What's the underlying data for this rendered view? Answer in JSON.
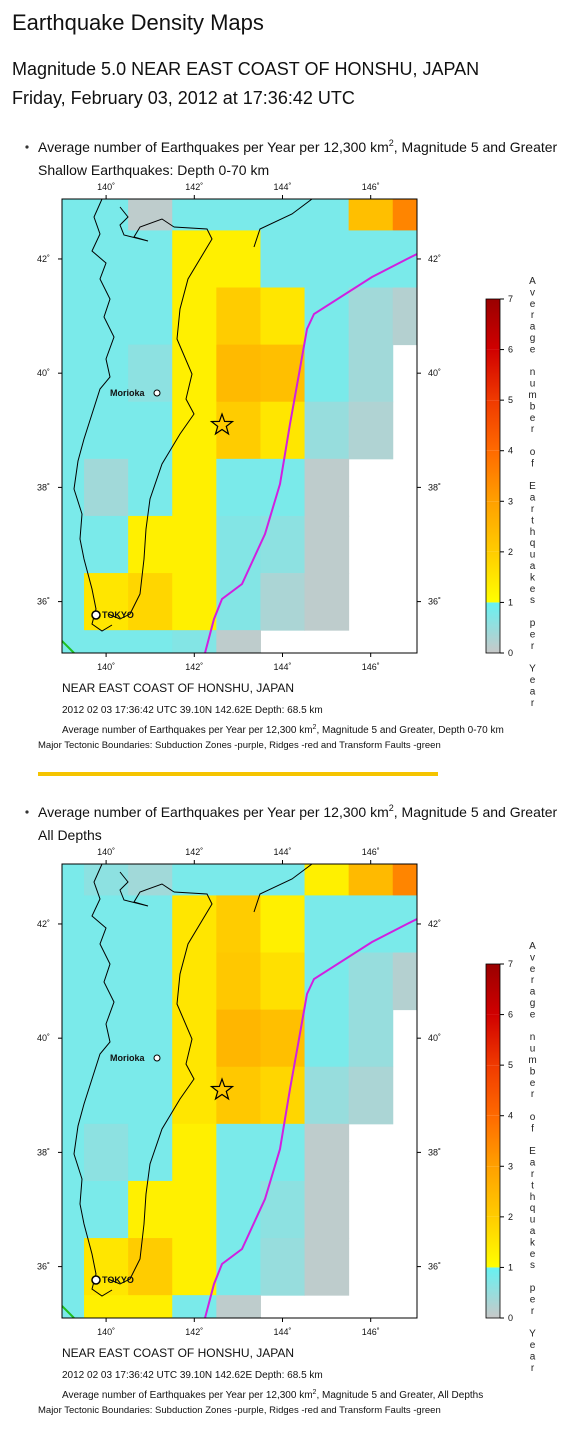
{
  "page": {
    "title": "Earthquake Density Maps",
    "subtitle": "Magnitude 5.0 NEAR EAST COAST OF HONSHU, JAPAN",
    "date": "Friday, February 03, 2012 at 17:36:42 UTC"
  },
  "chart_data": [
    {
      "type": "heatmap",
      "note_prefix": "Average number of Earthquakes per Year per 12,300 km",
      "note_sup": "2",
      "note_suffix": ", Magnitude 5 and Greater",
      "subtitle": "Shallow Earthquakes: Depth 0-70 km",
      "x": [
        139,
        140,
        141,
        142,
        143,
        144,
        145,
        146,
        147
      ],
      "y": [
        43,
        42,
        41,
        40,
        39,
        38,
        37,
        36,
        35
      ],
      "values": [
        [
          0.8,
          0.8,
          0.1,
          0.8,
          0.8,
          0.8,
          0.8,
          2.3,
          3.5
        ],
        [
          0.8,
          0.8,
          0.8,
          1.3,
          1.3,
          0.8,
          0.8,
          0.8,
          0.8
        ],
        [
          0.8,
          0.8,
          0.8,
          1.3,
          2.0,
          1.5,
          0.8,
          0.4,
          0.2
        ],
        [
          0.8,
          0.8,
          0.6,
          1.3,
          2.4,
          2.3,
          0.8,
          0.4,
          null
        ],
        [
          0.8,
          0.8,
          0.8,
          1.3,
          2.0,
          1.5,
          0.5,
          0.25,
          null
        ],
        [
          0.8,
          0.4,
          0.8,
          1.3,
          0.8,
          0.8,
          0.1,
          null,
          null
        ],
        [
          0.8,
          0.8,
          1.3,
          1.3,
          0.7,
          0.6,
          0.1,
          null,
          null
        ],
        [
          0.8,
          1.5,
          1.8,
          1.3,
          0.7,
          0.3,
          0.1,
          null,
          null
        ],
        [
          0.8,
          0.8,
          0.8,
          0.7,
          0.1,
          null,
          null,
          null,
          null
        ]
      ],
      "xlim": [
        139,
        147.05
      ],
      "ylim": [
        35.1,
        43.05
      ],
      "xticks": [
        {
          "value": 140,
          "label": "140˚"
        },
        {
          "value": 142,
          "label": "142˚"
        },
        {
          "value": 144,
          "label": "144˚"
        },
        {
          "value": 146,
          "label": "146˚"
        }
      ],
      "yticks": [
        {
          "value": 36,
          "label": "36˚"
        },
        {
          "value": 38,
          "label": "38˚"
        },
        {
          "value": 40,
          "label": "40˚"
        },
        {
          "value": 42,
          "label": "42˚"
        }
      ],
      "clim": [
        0,
        7
      ],
      "colorbar_ticks": [
        0,
        1,
        2,
        3,
        4,
        5,
        6,
        7
      ],
      "colorscale": [
        {
          "value": 0,
          "color": "#c8c8c8"
        },
        {
          "value": 1,
          "color": "#66f2f2"
        },
        {
          "value": 1,
          "color": "#ffff00"
        },
        {
          "value": 2,
          "color": "#ffcc00"
        },
        {
          "value": 3,
          "color": "#ffa000"
        },
        {
          "value": 4,
          "color": "#ff6a00"
        },
        {
          "value": 5,
          "color": "#f03a00"
        },
        {
          "value": 6,
          "color": "#d00000"
        },
        {
          "value": 7,
          "color": "#9a0000"
        }
      ],
      "colorbar_label": "Average number of Earthquakes per Year",
      "places": [
        "Morioka",
        "TOKYO"
      ],
      "region": "NEAR EAST COAST OF HONSHU, JAPAN",
      "event": "2012 02 03 17:36:42 UTC 39.10N 142.62E Depth: 68.5 km",
      "caption_prefix": "Average number of Earthquakes per Year per 12,300 km",
      "caption_sup": "2",
      "caption_suffix": ", Magnitude 5 and Greater, Depth 0-70 km",
      "boundaries": "Major Tectonic Boundaries: Subduction Zones -purple, Ridges -red and Transform Faults -green"
    },
    {
      "type": "heatmap",
      "note_prefix": "Average number of Earthquakes per Year per 12,300 km",
      "note_sup": "2",
      "note_suffix": ", Magnitude 5 and Greater",
      "subtitle": "All Depths",
      "x": [
        139,
        140,
        141,
        142,
        143,
        144,
        145,
        146,
        147
      ],
      "y": [
        43,
        42,
        41,
        40,
        39,
        38,
        37,
        36,
        35
      ],
      "values": [
        [
          0.8,
          0.6,
          0.4,
          0.8,
          0.8,
          0.8,
          1.3,
          2.4,
          3.5
        ],
        [
          0.8,
          0.8,
          0.8,
          1.5,
          2.0,
          1.3,
          0.8,
          0.8,
          0.8
        ],
        [
          0.8,
          0.8,
          0.8,
          1.5,
          2.1,
          1.6,
          0.8,
          0.5,
          0.2
        ],
        [
          0.8,
          0.8,
          0.8,
          1.5,
          2.5,
          2.3,
          0.8,
          0.5,
          null
        ],
        [
          0.8,
          0.8,
          0.8,
          1.5,
          2.1,
          1.8,
          0.5,
          0.3,
          null
        ],
        [
          0.8,
          0.6,
          0.8,
          1.3,
          0.8,
          0.8,
          0.1,
          null,
          null
        ],
        [
          0.8,
          0.8,
          1.3,
          1.3,
          0.8,
          0.6,
          0.1,
          null,
          null
        ],
        [
          0.8,
          1.5,
          2.0,
          1.3,
          0.8,
          0.5,
          0.1,
          null,
          null
        ],
        [
          0.8,
          1.3,
          1.3,
          0.8,
          0.1,
          null,
          null,
          null,
          null
        ]
      ],
      "xlim": [
        139,
        147.05
      ],
      "ylim": [
        35.1,
        43.05
      ],
      "xticks": [
        {
          "value": 140,
          "label": "140˚"
        },
        {
          "value": 142,
          "label": "142˚"
        },
        {
          "value": 144,
          "label": "144˚"
        },
        {
          "value": 146,
          "label": "146˚"
        }
      ],
      "yticks": [
        {
          "value": 36,
          "label": "36˚"
        },
        {
          "value": 38,
          "label": "38˚"
        },
        {
          "value": 40,
          "label": "40˚"
        },
        {
          "value": 42,
          "label": "42˚"
        }
      ],
      "clim": [
        0,
        7
      ],
      "colorbar_ticks": [
        0,
        1,
        2,
        3,
        4,
        5,
        6,
        7
      ],
      "colorscale": [
        {
          "value": 0,
          "color": "#c8c8c8"
        },
        {
          "value": 1,
          "color": "#66f2f2"
        },
        {
          "value": 1,
          "color": "#ffff00"
        },
        {
          "value": 2,
          "color": "#ffcc00"
        },
        {
          "value": 3,
          "color": "#ffa000"
        },
        {
          "value": 4,
          "color": "#ff6a00"
        },
        {
          "value": 5,
          "color": "#f03a00"
        },
        {
          "value": 6,
          "color": "#d00000"
        },
        {
          "value": 7,
          "color": "#9a0000"
        }
      ],
      "colorbar_label": "Average number of Earthquakes per Year",
      "places": [
        "Morioka",
        "TOKYO"
      ],
      "region": "NEAR EAST COAST OF HONSHU, JAPAN",
      "event": "2012 02 03 17:36:42 UTC 39.10N 142.62E Depth: 68.5 km",
      "caption_prefix": "Average number of Earthquakes per Year per 12,300 km",
      "caption_sup": "2",
      "caption_suffix": ", Magnitude 5 and Greater, All Depths",
      "boundaries": "Major Tectonic Boundaries: Subduction Zones -purple, Ridges -red and Transform Faults -green"
    }
  ]
}
